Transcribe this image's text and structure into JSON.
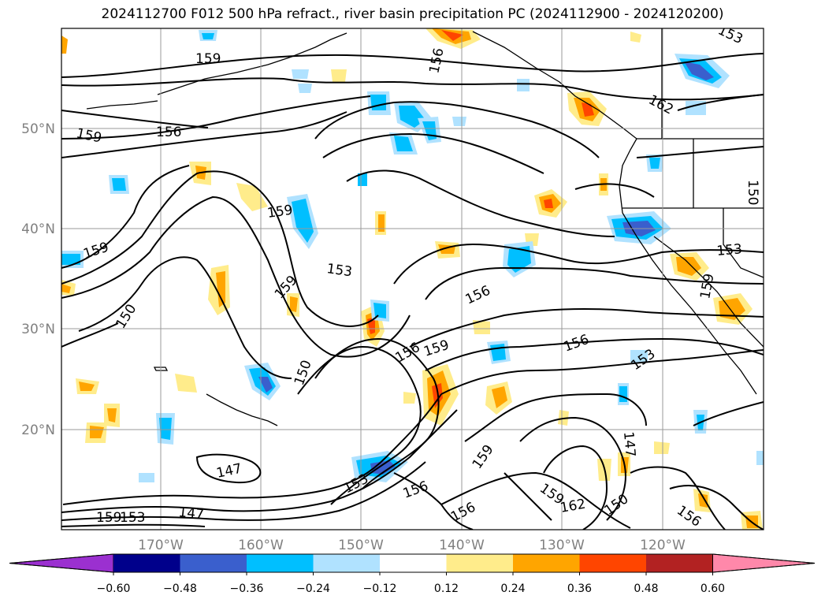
{
  "title": "2024112700 F012 500 hPa refract., river basin precipitation PC (2024112900 - 2024120200)",
  "lat_labels": [
    "50°N",
    "40°N",
    "30°N",
    "20°N"
  ],
  "lon_labels": [
    "170°W",
    "160°W",
    "150°W",
    "140°W",
    "130°W",
    "120°W"
  ],
  "colorbar": {
    "ticks": [
      "−0.60",
      "−0.48",
      "−0.36",
      "−0.24",
      "−0.12",
      "0.12",
      "0.24",
      "0.36",
      "0.48",
      "0.60"
    ],
    "colors": [
      "#9b30d0",
      "#00008b",
      "#3a5fcd",
      "#00bfff",
      "#b0e2ff",
      "#ffffff",
      "#ffec8b",
      "#ffa500",
      "#ff4500",
      "#b22222",
      "#ff88aa"
    ]
  },
  "contour_labels": [
    {
      "text": "159"
    },
    {
      "text": "159"
    },
    {
      "text": "156"
    },
    {
      "text": "156"
    },
    {
      "text": "162"
    },
    {
      "text": "159"
    },
    {
      "text": "159"
    },
    {
      "text": "153"
    },
    {
      "text": "159"
    },
    {
      "text": "150"
    },
    {
      "text": "156"
    },
    {
      "text": "153"
    },
    {
      "text": "159"
    },
    {
      "text": "156"
    },
    {
      "text": "159"
    },
    {
      "text": "156"
    },
    {
      "text": "150"
    },
    {
      "text": "153"
    },
    {
      "text": "147"
    },
    {
      "text": "159"
    },
    {
      "text": "153"
    },
    {
      "text": "147"
    },
    {
      "text": "159"
    },
    {
      "text": "153"
    },
    {
      "text": "156"
    },
    {
      "text": "156"
    },
    {
      "text": "159"
    },
    {
      "text": "162"
    },
    {
      "text": "150"
    },
    {
      "text": "156"
    },
    {
      "text": "147"
    },
    {
      "text": "150"
    },
    {
      "text": "153"
    }
  ]
}
